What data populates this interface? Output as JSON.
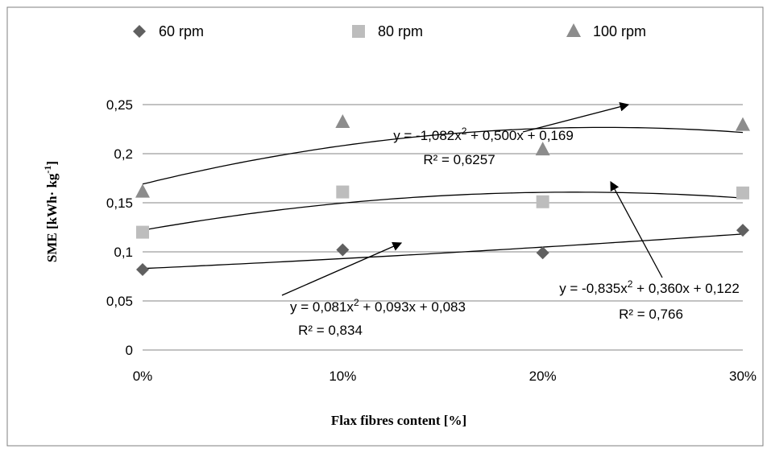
{
  "chart_data": {
    "type": "scatter",
    "x_categories": [
      "0%",
      "10%",
      "20%",
      "30%"
    ],
    "x": [
      0,
      10,
      20,
      30
    ],
    "xlabel": "Flax  fibres content  [%]",
    "ylabel": {
      "main": "SME [kWh· kg",
      "sup": "-1",
      "end": "]"
    },
    "ylim": [
      0,
      0.25
    ],
    "y_ticks": [
      "0",
      "0,05",
      "0,1",
      "0,15",
      "0,2",
      "0,25"
    ],
    "grid": "horizontal",
    "legend_position": "top",
    "series": [
      {
        "name": "60 rpm",
        "marker": "diamond",
        "color": "#606060",
        "values": [
          0.082,
          0.102,
          0.099,
          0.122
        ],
        "trend": {
          "a": 0.081,
          "b": 0.093,
          "c": 0.083
        },
        "eq_parts": [
          "y = 0,081x",
          "2",
          " + 0,093x + 0,083"
        ],
        "r2": "R² = 0,834"
      },
      {
        "name": "80 rpm",
        "marker": "square",
        "color": "#bdbdbd",
        "values": [
          0.12,
          0.161,
          0.151,
          0.16
        ],
        "trend": {
          "a": -0.835,
          "b": 0.36,
          "c": 0.122
        },
        "eq_parts": [
          "y = -0,835x",
          "2",
          " + 0,360x + 0,122"
        ],
        "r2": "R² = 0,766"
      },
      {
        "name": "100 rpm",
        "marker": "triangle",
        "color": "#8c8c8c",
        "values": [
          0.161,
          0.232,
          0.204,
          0.229
        ],
        "trend": {
          "a": -1.082,
          "b": 0.5,
          "c": 0.169
        },
        "eq_parts": [
          "y = -1,082x",
          "2",
          " + 0,500x + 0,169"
        ],
        "r2": "R² = 0,6257"
      }
    ]
  }
}
